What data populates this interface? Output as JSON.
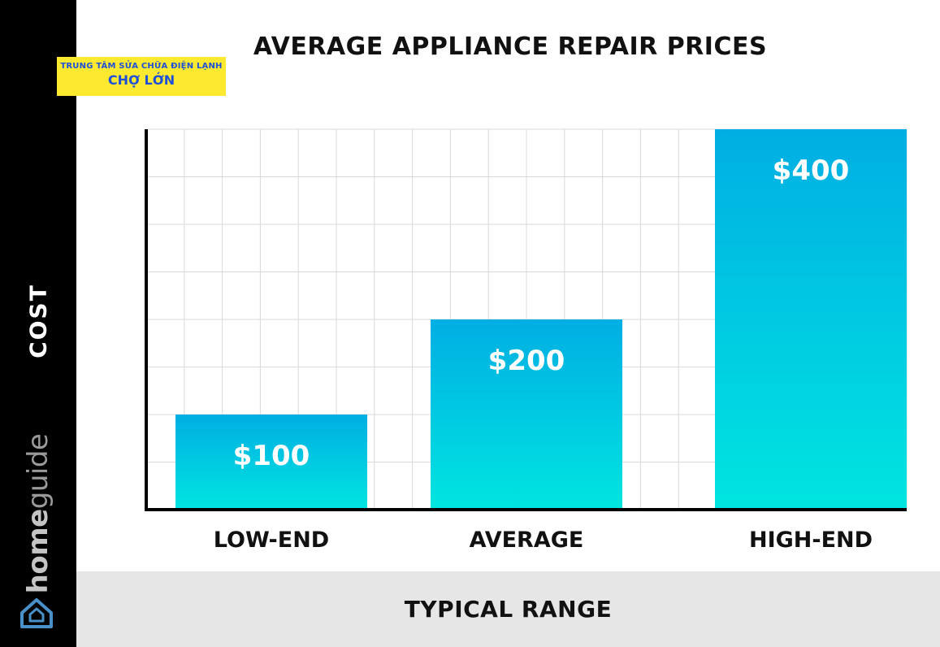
{
  "brand": {
    "name_part1": "home",
    "name_part2": "guide",
    "icon": "house-logo-icon"
  },
  "watermark": {
    "line1": "TRUNG TÂM SỬA CHỮA ĐIỆN LẠNH",
    "line2": "CHỢ LỚN"
  },
  "colors": {
    "bar_top": "#00aee3",
    "bar_bottom": "#00e5e0",
    "grid": "#d9d9d9",
    "axis": "#000000",
    "sidebar": "#000000",
    "footer": "#e6e6e6"
  },
  "chart_data": {
    "type": "bar",
    "title": "AVERAGE APPLIANCE REPAIR PRICES",
    "xlabel": "TYPICAL RANGE",
    "ylabel": "COST",
    "categories": [
      "LOW-END",
      "AVERAGE",
      "HIGH-END"
    ],
    "values": [
      100,
      200,
      400
    ],
    "data_labels": [
      "$100",
      "$200",
      "$400"
    ],
    "ylim": [
      0,
      400
    ],
    "grid": true,
    "legend": "none"
  }
}
